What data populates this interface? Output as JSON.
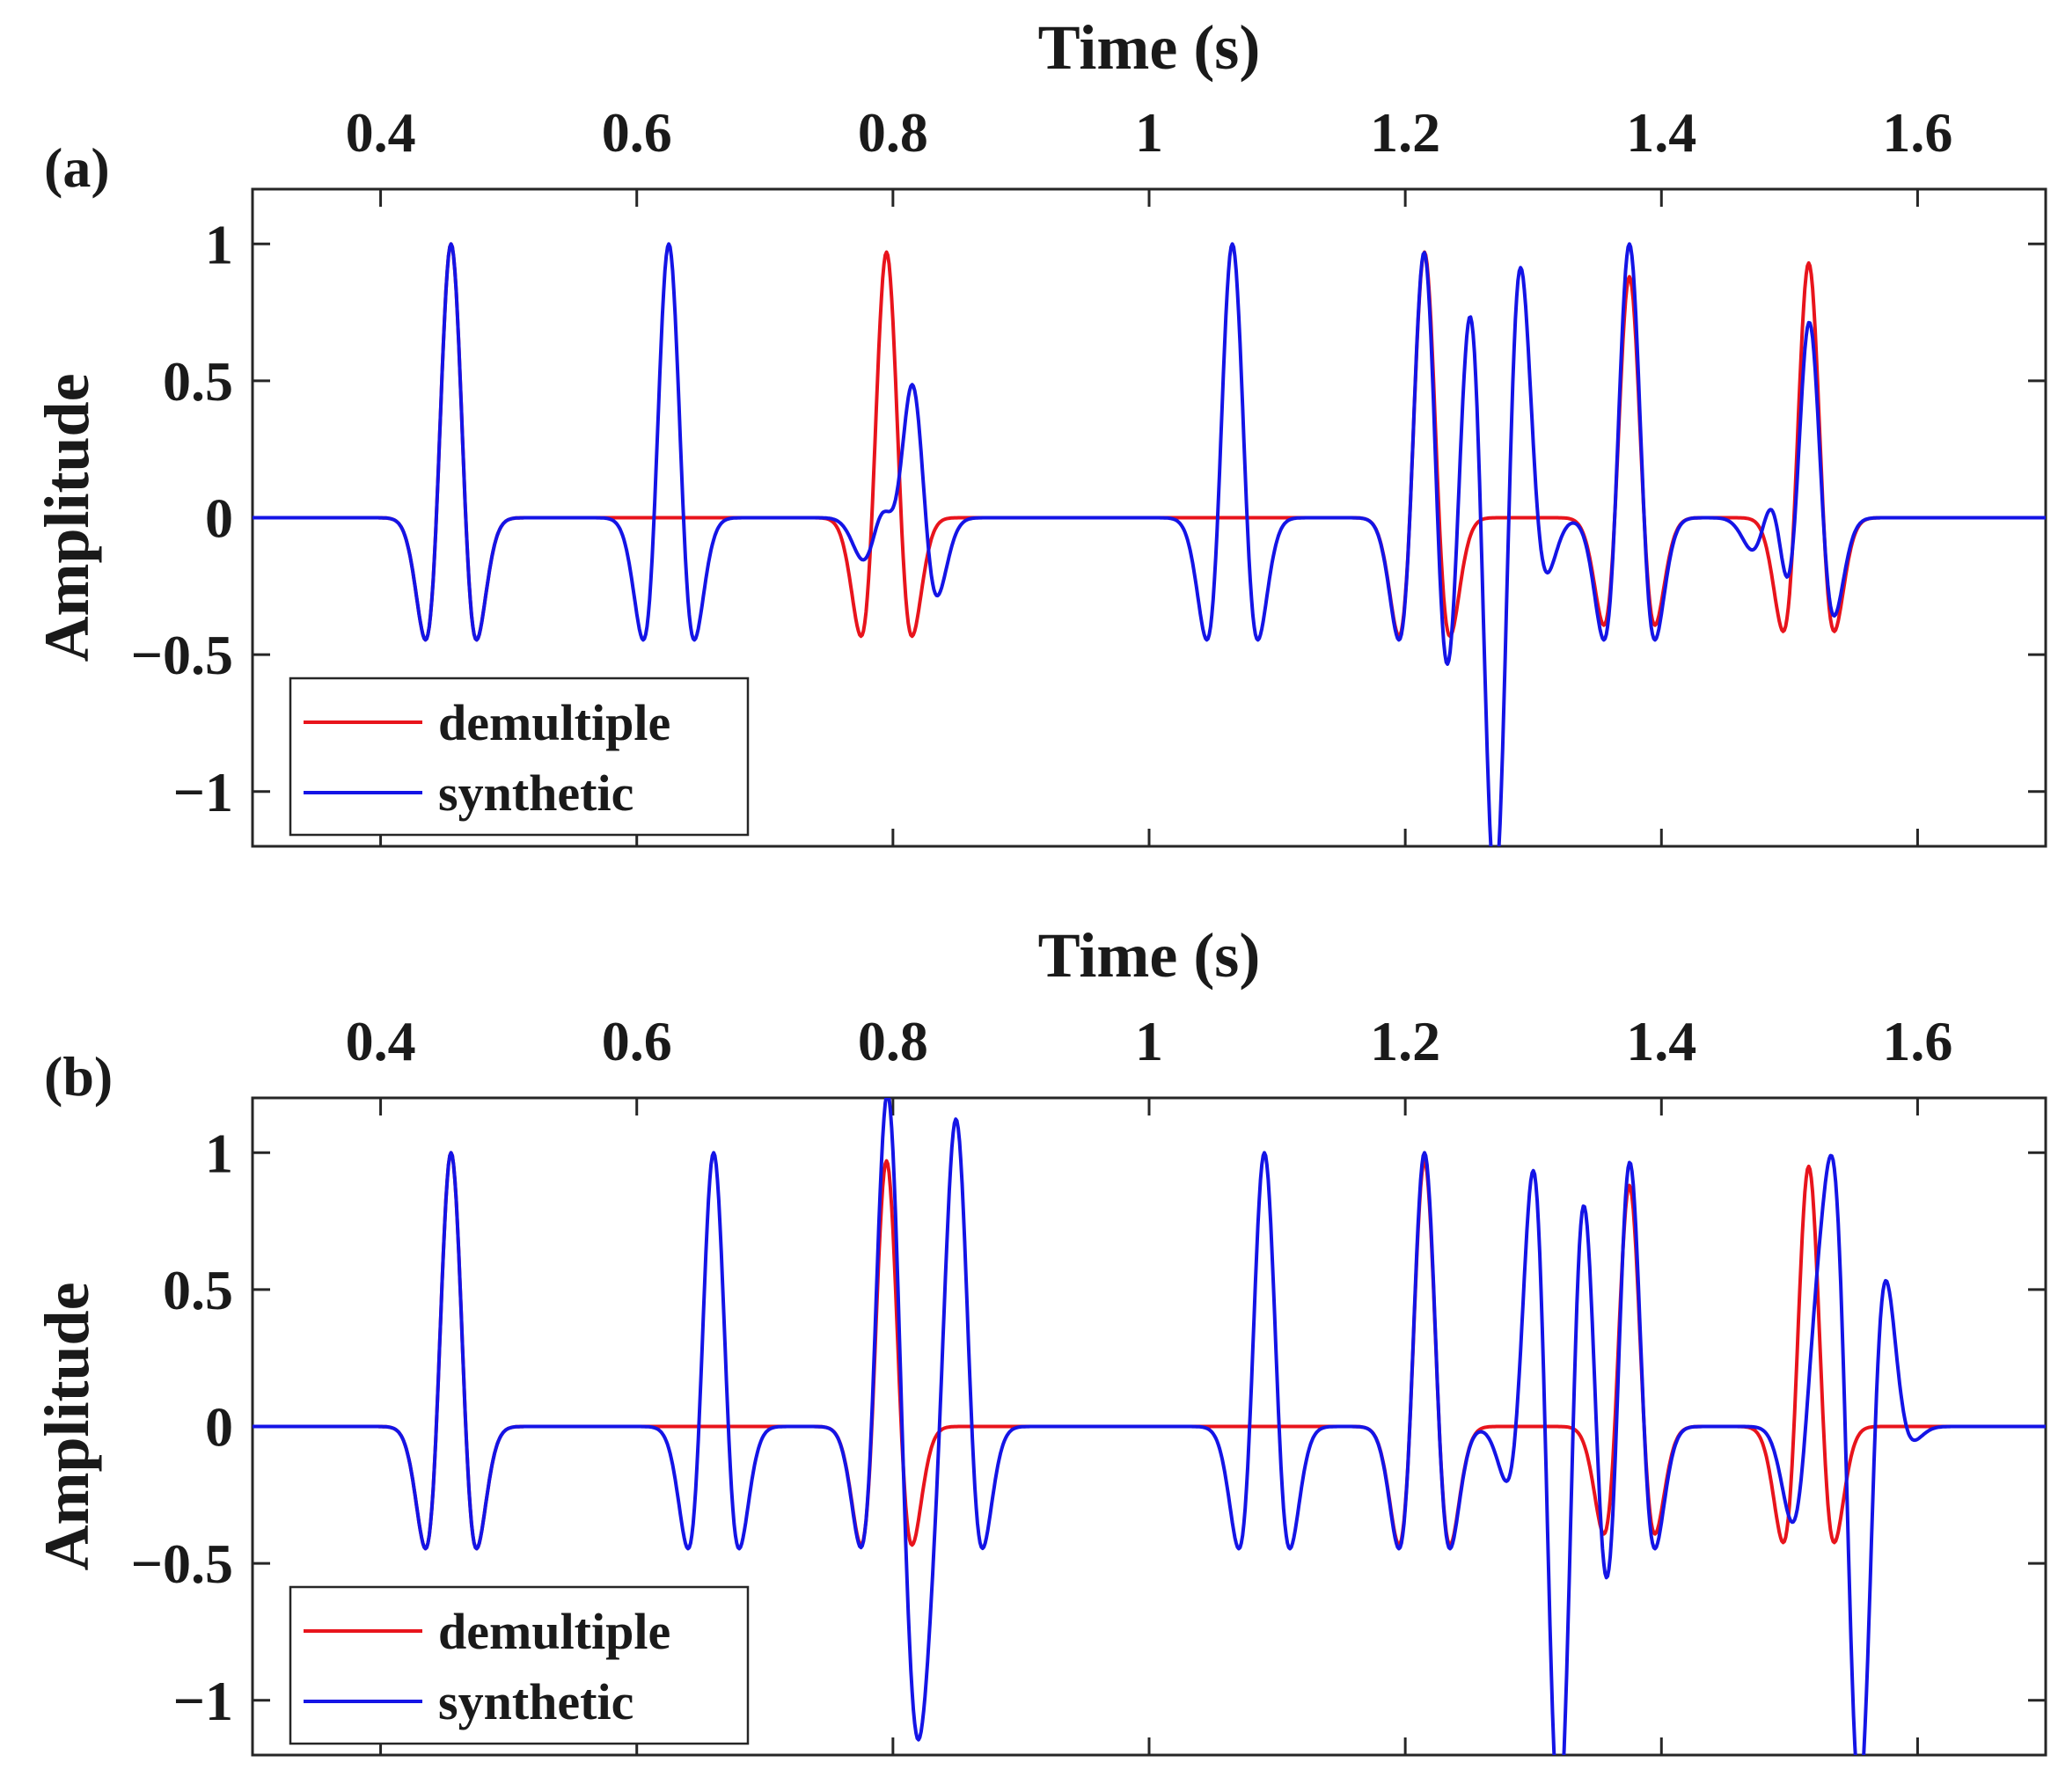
{
  "chart_data": [
    {
      "panel_label": "(a)",
      "type": "line",
      "xlabel": "Time (s)",
      "ylabel": "Amplitude",
      "xlim": [
        0.3,
        1.7
      ],
      "ylim": [
        -1.2,
        1.2
      ],
      "xticks": [
        0.4,
        0.6,
        0.8,
        1.0,
        1.2,
        1.4,
        1.6
      ],
      "xtick_labels": [
        "0.4",
        "0.6",
        "0.8",
        "1",
        "1.2",
        "1.4",
        "1.6"
      ],
      "yticks": [
        1,
        0.5,
        0,
        -0.5,
        -1
      ],
      "ytick_labels": [
        "1",
        "0.5",
        "0",
        "−0.5",
        "−1"
      ],
      "legend": {
        "position": "bottom-left",
        "entries": [
          "demultiple",
          "synthetic"
        ]
      },
      "series": [
        {
          "name": "demultiple",
          "color": "#e8141c",
          "wavelets": [
            [
              0.455,
              1.0
            ],
            [
              0.795,
              0.97
            ],
            [
              1.215,
              0.97
            ],
            [
              1.375,
              0.88
            ],
            [
              1.515,
              0.93
            ]
          ]
        },
        {
          "name": "synthetic",
          "color": "#1414e6",
          "wavelets": [
            [
              0.455,
              1.0
            ],
            [
              0.625,
              1.0
            ],
            [
              0.795,
              0.3
            ],
            [
              0.815,
              0.62
            ],
            [
              1.065,
              1.0
            ],
            [
              1.215,
              1.0
            ],
            [
              1.25,
              0.4
            ],
            [
              1.29,
              0.5
            ],
            [
              1.27,
              -0.95
            ],
            [
              1.375,
              1.0
            ],
            [
              1.49,
              0.25
            ],
            [
              1.515,
              0.8
            ]
          ]
        }
      ]
    },
    {
      "panel_label": "(b)",
      "type": "line",
      "xlabel": "Time (s)",
      "ylabel": "Amplitude",
      "xlim": [
        0.3,
        1.7
      ],
      "ylim": [
        -1.2,
        1.2
      ],
      "xticks": [
        0.4,
        0.6,
        0.8,
        1.0,
        1.2,
        1.4,
        1.6
      ],
      "xtick_labels": [
        "0.4",
        "0.6",
        "0.8",
        "1",
        "1.2",
        "1.4",
        "1.6"
      ],
      "yticks": [
        1,
        0.5,
        0,
        -0.5,
        -1
      ],
      "ytick_labels": [
        "1",
        "0.5",
        "0",
        "−0.5",
        "−1"
      ],
      "legend": {
        "position": "bottom-left",
        "entries": [
          "demultiple",
          "synthetic"
        ]
      },
      "series": [
        {
          "name": "demultiple",
          "color": "#e8141c",
          "wavelets": [
            [
              0.455,
              1.0
            ],
            [
              0.795,
              0.97
            ],
            [
              1.215,
              0.97
            ],
            [
              1.375,
              0.88
            ],
            [
              1.515,
              0.95
            ]
          ]
        },
        {
          "name": "synthetic",
          "color": "#1414e6",
          "wavelets": [
            [
              0.455,
              1.0
            ],
            [
              0.66,
              1.0
            ],
            [
              0.795,
              1.0
            ],
            [
              0.85,
              1.0
            ],
            [
              0.82,
              -0.6
            ],
            [
              1.09,
              1.0
            ],
            [
              1.215,
              1.0
            ],
            [
              1.3,
              0.5
            ],
            [
              1.34,
              0.45
            ],
            [
              1.32,
              -1.0
            ],
            [
              1.375,
              1.0
            ],
            [
              1.52,
              0.62
            ],
            [
              1.535,
              0.73
            ],
            [
              1.555,
              -0.9
            ],
            [
              1.575,
              0.15
            ]
          ]
        }
      ]
    }
  ]
}
